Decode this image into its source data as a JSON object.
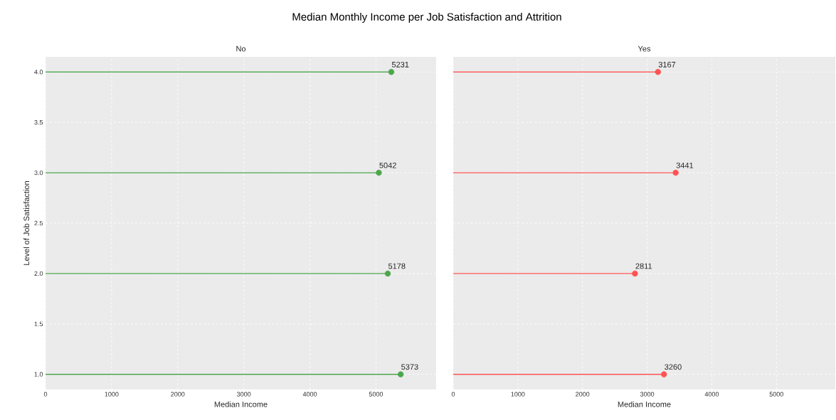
{
  "chart_data": [
    {
      "type": "lollipop",
      "title": "Median Monthly Income per Job Satisfaction and Attrition",
      "subtitle": "No",
      "orientation": "horizontal",
      "x": [
        1,
        2,
        3,
        4
      ],
      "values": [
        5373,
        5178,
        5042,
        5231
      ],
      "color": "#4ca64c",
      "data_labels": true,
      "marker": "circle",
      "grid": true,
      "xlabel": "Median Income",
      "ylabel": "Level of Job Satisfaction",
      "xlim": [
        0,
        5910
      ],
      "xticks": [
        0,
        1000,
        2000,
        3000,
        4000,
        5000
      ],
      "ylim": [
        0.85,
        4.15
      ],
      "yticks": [
        {
          "value": 1,
          "label": "1.0"
        },
        {
          "value": 1.5,
          "label": "1.5"
        },
        {
          "value": 2,
          "label": "2.0"
        },
        {
          "value": 2.5,
          "label": "2.5"
        },
        {
          "value": 3,
          "label": "3.0"
        },
        {
          "value": 3.5,
          "label": "3.5"
        },
        {
          "value": 4,
          "label": "4.0"
        }
      ]
    },
    {
      "type": "lollipop",
      "subtitle": "Yes",
      "orientation": "horizontal",
      "x": [
        1,
        2,
        3,
        4
      ],
      "values": [
        3260,
        2811,
        3441,
        3167
      ],
      "color": "#ff5252",
      "data_labels": true,
      "marker": "circle",
      "grid": true,
      "xlabel": "Median Income",
      "tick_labels": "x",
      "xlim": [
        0,
        5910
      ],
      "xticks": [
        0,
        1000,
        2000,
        3000,
        4000,
        5000
      ],
      "ylim": [
        0.85,
        4.15
      ],
      "yticks": [
        1,
        1.5,
        2,
        2.5,
        3,
        3.5,
        4
      ]
    }
  ]
}
